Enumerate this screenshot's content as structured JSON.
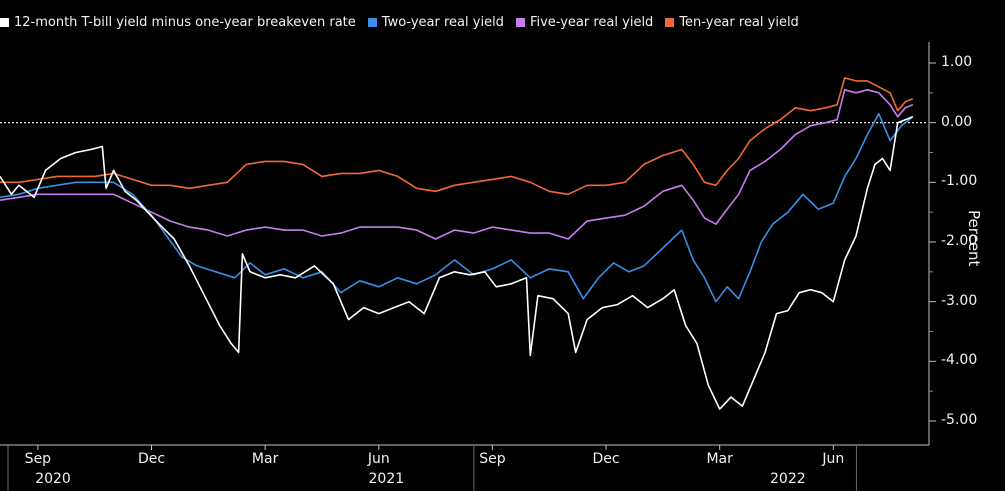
{
  "chart_data": {
    "type": "line",
    "xlabel": "",
    "ylabel": "Percent",
    "ylim": [
      -5.3,
      1.3
    ],
    "yticks": [
      1.0,
      0.0,
      -1.0,
      -2.0,
      -3.0,
      -4.0,
      -5.0
    ],
    "ytick_labels": [
      "1.00",
      "0.00",
      "-1.00",
      "-2.00",
      "-3.00",
      "-4.00",
      "-5.00"
    ],
    "x_range_months": [
      0,
      24.5
    ],
    "x_ticks": [
      {
        "label": "Sep",
        "month": 1
      },
      {
        "label": "Dec",
        "month": 4
      },
      {
        "label": "Mar",
        "month": 7
      },
      {
        "label": "Jun",
        "month": 10
      },
      {
        "label": "Sep",
        "month": 13
      },
      {
        "label": "Dec",
        "month": 16
      },
      {
        "label": "Mar",
        "month": 19
      },
      {
        "label": "Jun",
        "month": 22
      }
    ],
    "year_labels": [
      {
        "label": "2020",
        "month": 1.4
      },
      {
        "label": "2021",
        "month": 10.2
      },
      {
        "label": "2022",
        "month": 20.8
      }
    ],
    "reference_line": 0.0,
    "series": [
      {
        "name": "12-month T-bill yield minus one-year breakeven rate",
        "color": "#ffffff",
        "points": [
          [
            0,
            -0.9
          ],
          [
            0.3,
            -1.2
          ],
          [
            0.5,
            -1.05
          ],
          [
            0.9,
            -1.25
          ],
          [
            1.2,
            -0.8
          ],
          [
            1.6,
            -0.6
          ],
          [
            2.0,
            -0.5
          ],
          [
            2.4,
            -0.45
          ],
          [
            2.7,
            -0.4
          ],
          [
            2.8,
            -1.1
          ],
          [
            3.0,
            -0.8
          ],
          [
            3.3,
            -1.15
          ],
          [
            3.6,
            -1.3
          ],
          [
            3.9,
            -1.5
          ],
          [
            4.2,
            -1.7
          ],
          [
            4.6,
            -1.95
          ],
          [
            5.0,
            -2.4
          ],
          [
            5.4,
            -2.9
          ],
          [
            5.8,
            -3.4
          ],
          [
            6.1,
            -3.7
          ],
          [
            6.3,
            -3.85
          ],
          [
            6.4,
            -2.2
          ],
          [
            6.6,
            -2.5
          ],
          [
            7.0,
            -2.6
          ],
          [
            7.4,
            -2.55
          ],
          [
            7.8,
            -2.6
          ],
          [
            8.3,
            -2.4
          ],
          [
            8.8,
            -2.7
          ],
          [
            9.2,
            -3.3
          ],
          [
            9.6,
            -3.1
          ],
          [
            10.0,
            -3.2
          ],
          [
            10.4,
            -3.1
          ],
          [
            10.8,
            -3.0
          ],
          [
            11.2,
            -3.2
          ],
          [
            11.6,
            -2.6
          ],
          [
            12.0,
            -2.5
          ],
          [
            12.4,
            -2.55
          ],
          [
            12.8,
            -2.5
          ],
          [
            13.1,
            -2.75
          ],
          [
            13.5,
            -2.7
          ],
          [
            13.9,
            -2.6
          ],
          [
            14.0,
            -3.9
          ],
          [
            14.2,
            -2.9
          ],
          [
            14.6,
            -2.95
          ],
          [
            15.0,
            -3.2
          ],
          [
            15.2,
            -3.85
          ],
          [
            15.5,
            -3.3
          ],
          [
            15.9,
            -3.1
          ],
          [
            16.3,
            -3.05
          ],
          [
            16.7,
            -2.9
          ],
          [
            17.1,
            -3.1
          ],
          [
            17.5,
            -2.95
          ],
          [
            17.8,
            -2.8
          ],
          [
            18.1,
            -3.4
          ],
          [
            18.4,
            -3.7
          ],
          [
            18.7,
            -4.4
          ],
          [
            19.0,
            -4.8
          ],
          [
            19.3,
            -4.6
          ],
          [
            19.6,
            -4.75
          ],
          [
            19.9,
            -4.3
          ],
          [
            20.2,
            -3.85
          ],
          [
            20.5,
            -3.2
          ],
          [
            20.8,
            -3.15
          ],
          [
            21.1,
            -2.85
          ],
          [
            21.4,
            -2.8
          ],
          [
            21.7,
            -2.85
          ],
          [
            22.0,
            -3.0
          ],
          [
            22.3,
            -2.3
          ],
          [
            22.6,
            -1.9
          ],
          [
            22.9,
            -1.1
          ],
          [
            23.1,
            -0.7
          ],
          [
            23.3,
            -0.6
          ],
          [
            23.5,
            -0.8
          ],
          [
            23.7,
            0.0
          ],
          [
            23.9,
            0.05
          ],
          [
            24.1,
            0.1
          ]
        ]
      },
      {
        "name": "Two-year real yield",
        "color": "#3a8ee6",
        "points": [
          [
            0,
            -1.25
          ],
          [
            0.5,
            -1.2
          ],
          [
            1.0,
            -1.1
          ],
          [
            1.5,
            -1.05
          ],
          [
            2.0,
            -1.0
          ],
          [
            2.5,
            -1.0
          ],
          [
            3.0,
            -1.0
          ],
          [
            3.5,
            -1.2
          ],
          [
            4.0,
            -1.55
          ],
          [
            4.4,
            -1.9
          ],
          [
            4.8,
            -2.25
          ],
          [
            5.2,
            -2.4
          ],
          [
            5.7,
            -2.5
          ],
          [
            6.2,
            -2.6
          ],
          [
            6.6,
            -2.35
          ],
          [
            7.0,
            -2.55
          ],
          [
            7.5,
            -2.45
          ],
          [
            8.0,
            -2.6
          ],
          [
            8.5,
            -2.5
          ],
          [
            9.0,
            -2.85
          ],
          [
            9.5,
            -2.65
          ],
          [
            10.0,
            -2.75
          ],
          [
            10.5,
            -2.6
          ],
          [
            11.0,
            -2.7
          ],
          [
            11.5,
            -2.55
          ],
          [
            12.0,
            -2.3
          ],
          [
            12.5,
            -2.55
          ],
          [
            13.0,
            -2.45
          ],
          [
            13.5,
            -2.3
          ],
          [
            14.0,
            -2.6
          ],
          [
            14.5,
            -2.45
          ],
          [
            15.0,
            -2.5
          ],
          [
            15.4,
            -2.95
          ],
          [
            15.8,
            -2.6
          ],
          [
            16.2,
            -2.35
          ],
          [
            16.6,
            -2.5
          ],
          [
            17.0,
            -2.4
          ],
          [
            17.5,
            -2.1
          ],
          [
            18.0,
            -1.8
          ],
          [
            18.3,
            -2.3
          ],
          [
            18.6,
            -2.6
          ],
          [
            18.9,
            -3.0
          ],
          [
            19.2,
            -2.75
          ],
          [
            19.5,
            -2.95
          ],
          [
            19.8,
            -2.5
          ],
          [
            20.1,
            -2.0
          ],
          [
            20.4,
            -1.7
          ],
          [
            20.8,
            -1.5
          ],
          [
            21.2,
            -1.2
          ],
          [
            21.6,
            -1.45
          ],
          [
            22.0,
            -1.35
          ],
          [
            22.3,
            -0.9
          ],
          [
            22.6,
            -0.6
          ],
          [
            22.9,
            -0.2
          ],
          [
            23.2,
            0.15
          ],
          [
            23.5,
            -0.3
          ],
          [
            23.8,
            -0.05
          ],
          [
            24.1,
            0.1
          ]
        ]
      },
      {
        "name": "Five-year real yield",
        "color": "#c77df0",
        "points": [
          [
            0,
            -1.3
          ],
          [
            0.5,
            -1.25
          ],
          [
            1.0,
            -1.2
          ],
          [
            1.5,
            -1.2
          ],
          [
            2.0,
            -1.2
          ],
          [
            2.5,
            -1.2
          ],
          [
            3.0,
            -1.2
          ],
          [
            3.5,
            -1.35
          ],
          [
            4.0,
            -1.5
          ],
          [
            4.5,
            -1.65
          ],
          [
            5.0,
            -1.75
          ],
          [
            5.5,
            -1.8
          ],
          [
            6.0,
            -1.9
          ],
          [
            6.5,
            -1.8
          ],
          [
            7.0,
            -1.75
          ],
          [
            7.5,
            -1.8
          ],
          [
            8.0,
            -1.8
          ],
          [
            8.5,
            -1.9
          ],
          [
            9.0,
            -1.85
          ],
          [
            9.5,
            -1.75
          ],
          [
            10.0,
            -1.75
          ],
          [
            10.5,
            -1.75
          ],
          [
            11.0,
            -1.8
          ],
          [
            11.5,
            -1.95
          ],
          [
            12.0,
            -1.8
          ],
          [
            12.5,
            -1.85
          ],
          [
            13.0,
            -1.75
          ],
          [
            13.5,
            -1.8
          ],
          [
            14.0,
            -1.85
          ],
          [
            14.5,
            -1.85
          ],
          [
            15.0,
            -1.95
          ],
          [
            15.5,
            -1.65
          ],
          [
            16.0,
            -1.6
          ],
          [
            16.5,
            -1.55
          ],
          [
            17.0,
            -1.4
          ],
          [
            17.5,
            -1.15
          ],
          [
            18.0,
            -1.05
          ],
          [
            18.3,
            -1.3
          ],
          [
            18.6,
            -1.6
          ],
          [
            18.9,
            -1.7
          ],
          [
            19.2,
            -1.45
          ],
          [
            19.5,
            -1.2
          ],
          [
            19.8,
            -0.8
          ],
          [
            20.2,
            -0.65
          ],
          [
            20.6,
            -0.45
          ],
          [
            21.0,
            -0.2
          ],
          [
            21.4,
            -0.05
          ],
          [
            21.8,
            0.0
          ],
          [
            22.1,
            0.05
          ],
          [
            22.3,
            0.55
          ],
          [
            22.6,
            0.5
          ],
          [
            22.9,
            0.55
          ],
          [
            23.2,
            0.5
          ],
          [
            23.5,
            0.3
          ],
          [
            23.7,
            0.1
          ],
          [
            23.9,
            0.25
          ],
          [
            24.1,
            0.3
          ]
        ]
      },
      {
        "name": "Ten-year real yield",
        "color": "#ef6a35",
        "points": [
          [
            0,
            -1.0
          ],
          [
            0.5,
            -1.0
          ],
          [
            1.0,
            -0.95
          ],
          [
            1.5,
            -0.9
          ],
          [
            2.0,
            -0.9
          ],
          [
            2.5,
            -0.9
          ],
          [
            3.0,
            -0.85
          ],
          [
            3.5,
            -0.95
          ],
          [
            4.0,
            -1.05
          ],
          [
            4.5,
            -1.05
          ],
          [
            5.0,
            -1.1
          ],
          [
            5.5,
            -1.05
          ],
          [
            6.0,
            -1.0
          ],
          [
            6.5,
            -0.7
          ],
          [
            7.0,
            -0.65
          ],
          [
            7.5,
            -0.65
          ],
          [
            8.0,
            -0.7
          ],
          [
            8.5,
            -0.9
          ],
          [
            9.0,
            -0.85
          ],
          [
            9.5,
            -0.85
          ],
          [
            10.0,
            -0.8
          ],
          [
            10.5,
            -0.9
          ],
          [
            11.0,
            -1.1
          ],
          [
            11.5,
            -1.15
          ],
          [
            12.0,
            -1.05
          ],
          [
            12.5,
            -1.0
          ],
          [
            13.0,
            -0.95
          ],
          [
            13.5,
            -0.9
          ],
          [
            14.0,
            -1.0
          ],
          [
            14.5,
            -1.15
          ],
          [
            15.0,
            -1.2
          ],
          [
            15.5,
            -1.05
          ],
          [
            16.0,
            -1.05
          ],
          [
            16.5,
            -1.0
          ],
          [
            17.0,
            -0.7
          ],
          [
            17.5,
            -0.55
          ],
          [
            18.0,
            -0.45
          ],
          [
            18.3,
            -0.7
          ],
          [
            18.6,
            -1.0
          ],
          [
            18.9,
            -1.05
          ],
          [
            19.2,
            -0.8
          ],
          [
            19.5,
            -0.6
          ],
          [
            19.8,
            -0.3
          ],
          [
            20.2,
            -0.1
          ],
          [
            20.6,
            0.05
          ],
          [
            21.0,
            0.25
          ],
          [
            21.4,
            0.2
          ],
          [
            21.8,
            0.25
          ],
          [
            22.1,
            0.3
          ],
          [
            22.3,
            0.75
          ],
          [
            22.6,
            0.7
          ],
          [
            22.9,
            0.7
          ],
          [
            23.2,
            0.6
          ],
          [
            23.5,
            0.5
          ],
          [
            23.7,
            0.2
          ],
          [
            23.9,
            0.35
          ],
          [
            24.1,
            0.4
          ]
        ]
      }
    ]
  }
}
